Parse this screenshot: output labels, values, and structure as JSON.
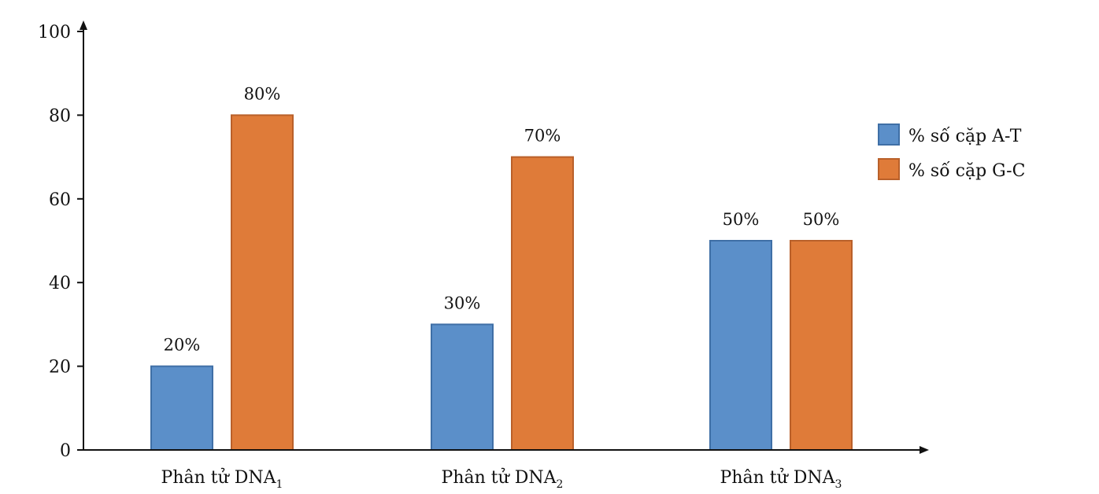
{
  "chart_data": {
    "type": "bar",
    "categories": [
      {
        "main": "Phân tử DNA",
        "sub": "1"
      },
      {
        "main": "Phân tử DNA",
        "sub": "2"
      },
      {
        "main": "Phân tử DNA",
        "sub": "3"
      }
    ],
    "series": [
      {
        "name": "% số cặp A-T",
        "values": [
          20,
          30,
          50
        ],
        "labels": [
          "20%",
          "30%",
          "50%"
        ],
        "color": "#5b8fc9",
        "edge_color": "#3f6fa6"
      },
      {
        "name": "% số cặp G-C",
        "values": [
          80,
          70,
          50
        ],
        "labels": [
          "80%",
          "70%",
          "50%"
        ],
        "color": "#df7b39",
        "edge_color": "#b9602a"
      }
    ],
    "ylim": [
      0,
      100
    ],
    "yticks": [
      0,
      20,
      40,
      60,
      80,
      100
    ],
    "grid": false,
    "legend_position": "right"
  }
}
